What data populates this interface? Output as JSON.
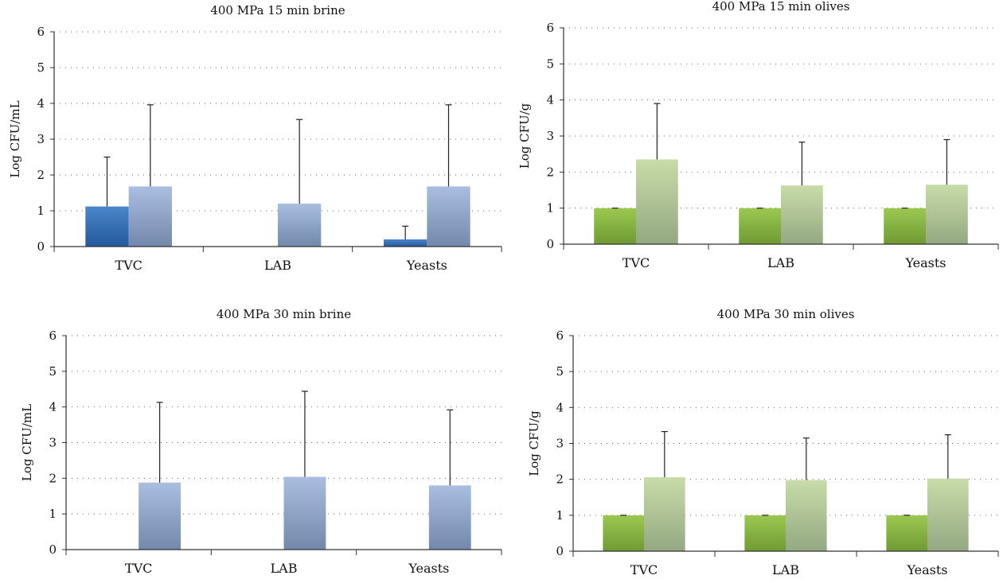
{
  "colors": {
    "brine_untreated": [
      "#4a86c8",
      "#24599c"
    ],
    "brine_treated": [
      "#a9bee0",
      "#7389ac"
    ],
    "olives_untreated": [
      "#9cc850",
      "#6f9a33"
    ],
    "olives_treated": [
      "#c8dca8",
      "#94a882"
    ],
    "gridline": "#666666",
    "axis": "#333333",
    "error_bar": "#222222"
  },
  "chart_data": [
    {
      "type": "bar",
      "title": "400 MPa 15 min brine",
      "ylabel": "Log CFU/mL",
      "xlabel": "",
      "ylim": [
        0,
        6
      ],
      "yticks": [
        "0",
        "1",
        "2",
        "3",
        "4",
        "5",
        "6"
      ],
      "grid": true,
      "categories": [
        "TVC",
        "LAB",
        "Yeasts"
      ],
      "palette": "brine",
      "series": [
        {
          "values": [
            1.12,
            0,
            0.2
          ],
          "errors": [
            1.38,
            0,
            0.37
          ]
        },
        {
          "values": [
            1.68,
            1.2,
            1.68
          ],
          "errors": [
            2.28,
            2.35,
            2.28
          ]
        }
      ]
    },
    {
      "type": "bar",
      "title": "400 MPa 15 min olives",
      "ylabel": "Log CFU/g",
      "xlabel": "",
      "ylim": [
        0,
        6
      ],
      "yticks": [
        "0",
        "1",
        "2",
        "3",
        "4",
        "5",
        "6"
      ],
      "grid": true,
      "categories": [
        "TVC",
        "LAB",
        "Yeasts"
      ],
      "palette": "olives",
      "series": [
        {
          "values": [
            1.0,
            1.0,
            1.0
          ],
          "errors": [
            0,
            0,
            0
          ]
        },
        {
          "values": [
            2.35,
            1.63,
            1.65
          ],
          "errors": [
            1.55,
            1.2,
            1.25
          ]
        }
      ]
    },
    {
      "type": "bar",
      "title": "400 MPa 30 min brine",
      "ylabel": "Log CFU/mL",
      "xlabel": "",
      "ylim": [
        0,
        6
      ],
      "yticks": [
        "0",
        "1",
        "2",
        "3",
        "4",
        "5",
        "6"
      ],
      "grid": true,
      "categories": [
        "TVC",
        "LAB",
        "Yeasts"
      ],
      "palette": "brine",
      "series": [
        {
          "values": [
            0,
            0,
            0
          ],
          "errors": [
            0,
            0,
            0
          ]
        },
        {
          "values": [
            1.88,
            2.04,
            1.8
          ],
          "errors": [
            2.25,
            2.4,
            2.12
          ]
        }
      ]
    },
    {
      "type": "bar",
      "title": "400 MPa 30 min olives",
      "ylabel": "Log CFU/g",
      "xlabel": "",
      "ylim": [
        0,
        6
      ],
      "yticks": [
        "0",
        "1",
        "2",
        "3",
        "4",
        "5",
        "6"
      ],
      "grid": true,
      "categories": [
        "TVC",
        "LAB",
        "Yeasts"
      ],
      "palette": "olives",
      "series": [
        {
          "values": [
            1.0,
            1.0,
            1.0
          ],
          "errors": [
            0,
            0,
            0
          ]
        },
        {
          "values": [
            2.06,
            1.98,
            2.02
          ],
          "errors": [
            1.27,
            1.17,
            1.22
          ]
        }
      ]
    }
  ]
}
